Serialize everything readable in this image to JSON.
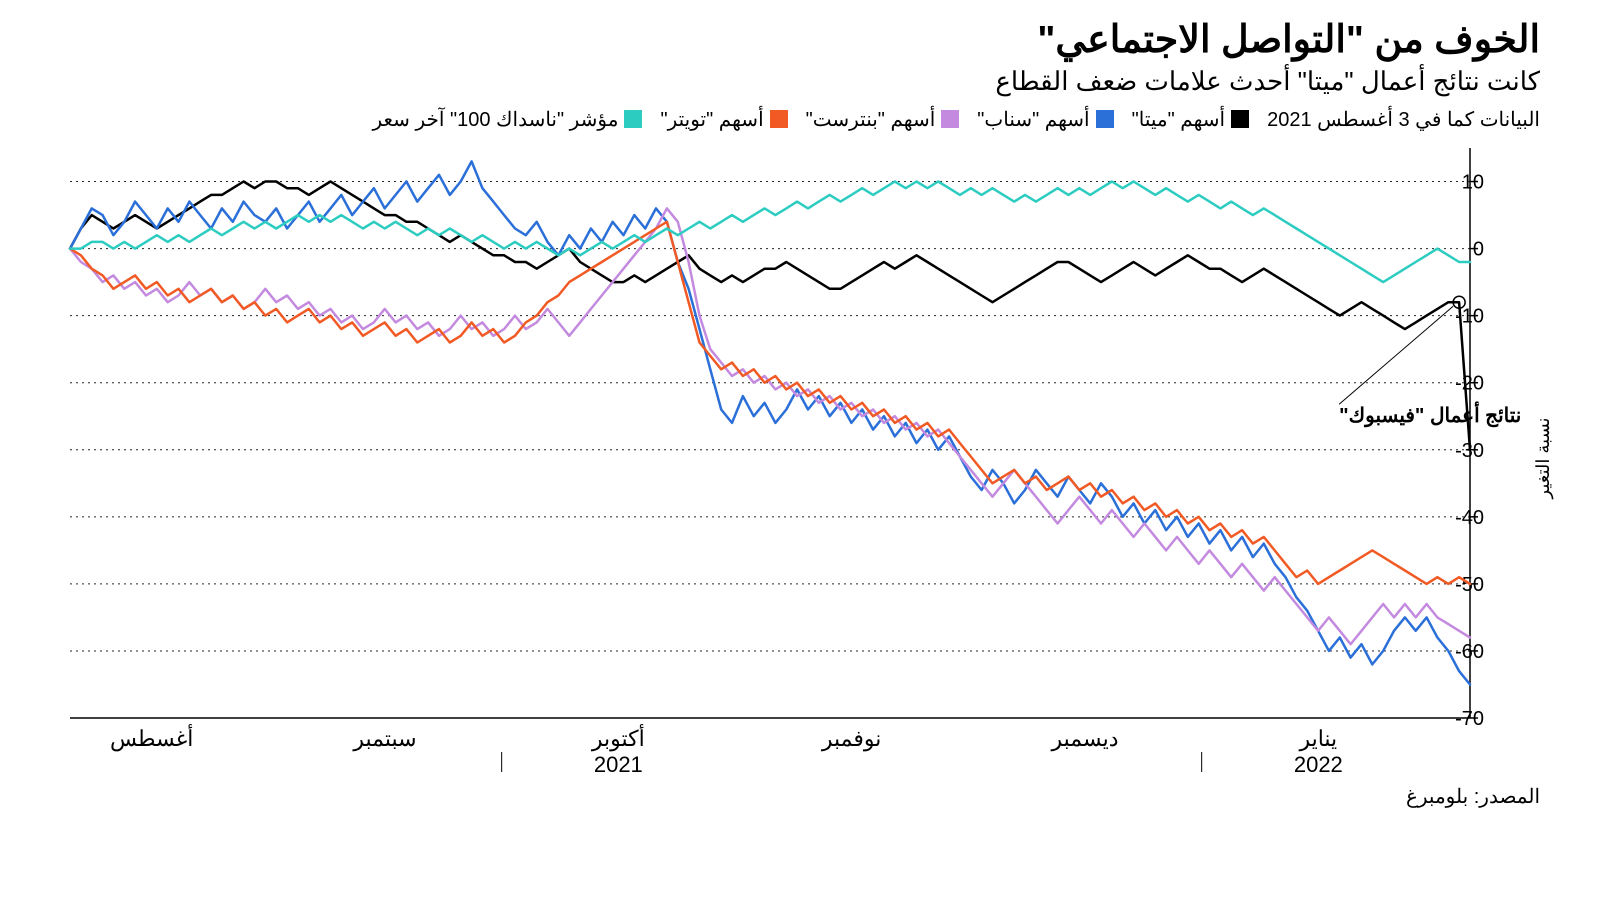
{
  "title": "الخوف من \"التواصل الاجتماعي\"",
  "subtitle": "كانت نتائج أعمال \"ميتا\" أحدث علامات ضعف القطاع",
  "legend_note": "البيانات كما في 3 أغسطس 2021",
  "y_axis_title": "نسبة التغير",
  "source": "المصدر: بلومبرغ",
  "annotation": {
    "text": "نتائج أعمال \"فيسبوك\""
  },
  "chart": {
    "type": "line",
    "background_color": "#ffffff",
    "grid_color": "#000000",
    "grid_dash": "2 4",
    "line_width": 2.5,
    "ylim": [
      -70,
      15
    ],
    "ytick_values": [
      10,
      0,
      -10,
      -20,
      -30,
      -40,
      -50,
      -60,
      -70
    ],
    "ytick_labels": [
      "10",
      "0",
      "10-",
      "20-",
      "30-",
      "40-",
      "50-",
      "60-",
      "70-"
    ],
    "x_months": [
      "أغسطس",
      "سبتمبر",
      "أكتوبر",
      "نوفمبر",
      "ديسمبر",
      "يناير"
    ],
    "x_years": {
      "2021": 2,
      "2022": 5
    },
    "n_points": 130,
    "series": [
      {
        "name": "أسهم \"ميتا\"",
        "color": "#000000",
        "data": [
          0,
          3,
          5,
          4,
          3,
          4,
          5,
          4,
          3,
          4,
          5,
          6,
          7,
          8,
          8,
          9,
          10,
          9,
          10,
          10,
          9,
          9,
          8,
          9,
          10,
          9,
          8,
          7,
          6,
          5,
          5,
          4,
          4,
          3,
          2,
          1,
          2,
          1,
          0,
          -1,
          -1,
          -2,
          -2,
          -3,
          -2,
          -1,
          0,
          -2,
          -3,
          -4,
          -5,
          -5,
          -4,
          -5,
          -4,
          -3,
          -2,
          -1,
          -3,
          -4,
          -5,
          -4,
          -5,
          -4,
          -3,
          -3,
          -2,
          -3,
          -4,
          -5,
          -6,
          -6,
          -5,
          -4,
          -3,
          -2,
          -3,
          -2,
          -1,
          -2,
          -3,
          -4,
          -5,
          -6,
          -7,
          -8,
          -7,
          -6,
          -5,
          -4,
          -3,
          -2,
          -2,
          -3,
          -4,
          -5,
          -4,
          -3,
          -2,
          -3,
          -4,
          -3,
          -2,
          -1,
          -2,
          -3,
          -3,
          -4,
          -5,
          -4,
          -3,
          -4,
          -5,
          -6,
          -7,
          -8,
          -9,
          -10,
          -9,
          -8,
          -9,
          -10,
          -11,
          -12,
          -11,
          -10,
          -9,
          -8,
          -8,
          -30
        ]
      },
      {
        "name": "أسهم \"سناب\"",
        "color": "#2b6fd8",
        "data": [
          0,
          3,
          6,
          5,
          2,
          4,
          7,
          5,
          3,
          6,
          4,
          7,
          5,
          3,
          6,
          4,
          7,
          5,
          4,
          6,
          3,
          5,
          7,
          4,
          6,
          8,
          5,
          7,
          9,
          6,
          8,
          10,
          7,
          9,
          11,
          8,
          10,
          13,
          9,
          7,
          5,
          3,
          2,
          4,
          1,
          -1,
          2,
          0,
          3,
          1,
          4,
          2,
          5,
          3,
          6,
          4,
          -2,
          -6,
          -12,
          -18,
          -24,
          -26,
          -22,
          -25,
          -23,
          -26,
          -24,
          -21,
          -24,
          -22,
          -25,
          -23,
          -26,
          -24,
          -27,
          -25,
          -28,
          -26,
          -29,
          -27,
          -30,
          -28,
          -31,
          -34,
          -36,
          -33,
          -35,
          -38,
          -36,
          -33,
          -35,
          -37,
          -34,
          -36,
          -38,
          -35,
          -37,
          -40,
          -38,
          -41,
          -39,
          -42,
          -40,
          -43,
          -41,
          -44,
          -42,
          -45,
          -43,
          -46,
          -44,
          -47,
          -49,
          -52,
          -54,
          -57,
          -60,
          -58,
          -61,
          -59,
          -62,
          -60,
          -57,
          -55,
          -57,
          -55,
          -58,
          -60,
          -63,
          -65
        ]
      },
      {
        "name": "أسهم \"بنترست\"",
        "color": "#c38adf",
        "data": [
          0,
          -2,
          -3,
          -5,
          -4,
          -6,
          -5,
          -7,
          -6,
          -8,
          -7,
          -5,
          -7,
          -6,
          -8,
          -7,
          -9,
          -8,
          -6,
          -8,
          -7,
          -9,
          -8,
          -10,
          -9,
          -11,
          -10,
          -12,
          -11,
          -9,
          -11,
          -10,
          -12,
          -11,
          -13,
          -12,
          -10,
          -12,
          -11,
          -13,
          -12,
          -10,
          -12,
          -11,
          -9,
          -11,
          -13,
          -11,
          -9,
          -7,
          -5,
          -3,
          -1,
          1,
          3,
          6,
          4,
          -2,
          -10,
          -15,
          -17,
          -19,
          -18,
          -20,
          -19,
          -21,
          -20,
          -22,
          -21,
          -23,
          -22,
          -24,
          -23,
          -25,
          -24,
          -26,
          -25,
          -27,
          -26,
          -28,
          -27,
          -29,
          -31,
          -33,
          -35,
          -37,
          -35,
          -33,
          -35,
          -37,
          -39,
          -41,
          -39,
          -37,
          -39,
          -41,
          -39,
          -41,
          -43,
          -41,
          -43,
          -45,
          -43,
          -45,
          -47,
          -45,
          -47,
          -49,
          -47,
          -49,
          -51,
          -49,
          -51,
          -53,
          -55,
          -57,
          -55,
          -57,
          -59,
          -57,
          -55,
          -53,
          -55,
          -53,
          -55,
          -53,
          -55,
          -56,
          -57,
          -58
        ]
      },
      {
        "name": "أسهم \"تويتر\"",
        "color": "#f15a24",
        "data": [
          0,
          -1,
          -3,
          -4,
          -6,
          -5,
          -4,
          -6,
          -5,
          -7,
          -6,
          -8,
          -7,
          -6,
          -8,
          -7,
          -9,
          -8,
          -10,
          -9,
          -11,
          -10,
          -9,
          -11,
          -10,
          -12,
          -11,
          -13,
          -12,
          -11,
          -13,
          -12,
          -14,
          -13,
          -12,
          -14,
          -13,
          -11,
          -13,
          -12,
          -14,
          -13,
          -11,
          -10,
          -8,
          -7,
          -5,
          -4,
          -3,
          -2,
          -1,
          0,
          1,
          2,
          3,
          4,
          -2,
          -8,
          -14,
          -16,
          -18,
          -17,
          -19,
          -18,
          -20,
          -19,
          -21,
          -20,
          -22,
          -21,
          -23,
          -22,
          -24,
          -23,
          -25,
          -24,
          -26,
          -25,
          -27,
          -26,
          -28,
          -27,
          -29,
          -31,
          -33,
          -35,
          -34,
          -33,
          -35,
          -34,
          -36,
          -35,
          -34,
          -36,
          -35,
          -37,
          -36,
          -38,
          -37,
          -39,
          -38,
          -40,
          -39,
          -41,
          -40,
          -42,
          -41,
          -43,
          -42,
          -44,
          -43,
          -45,
          -47,
          -49,
          -48,
          -50,
          -49,
          -48,
          -47,
          -46,
          -45,
          -46,
          -47,
          -48,
          -49,
          -50,
          -49,
          -50,
          -49,
          -50
        ]
      },
      {
        "name": "مؤشر \"ناسداك 100\" آخر سعر",
        "color": "#2cccc0",
        "data": [
          0,
          0,
          1,
          1,
          0,
          1,
          0,
          1,
          2,
          1,
          2,
          1,
          2,
          3,
          2,
          3,
          4,
          3,
          4,
          3,
          4,
          5,
          4,
          5,
          4,
          5,
          4,
          3,
          4,
          3,
          4,
          3,
          2,
          3,
          2,
          3,
          2,
          1,
          2,
          1,
          0,
          1,
          0,
          1,
          0,
          -1,
          0,
          -1,
          0,
          1,
          0,
          1,
          2,
          1,
          2,
          3,
          2,
          3,
          4,
          3,
          4,
          5,
          4,
          5,
          6,
          5,
          6,
          7,
          6,
          7,
          8,
          7,
          8,
          9,
          8,
          9,
          10,
          9,
          10,
          9,
          10,
          9,
          8,
          9,
          8,
          9,
          8,
          7,
          8,
          7,
          8,
          9,
          8,
          9,
          8,
          9,
          10,
          9,
          10,
          9,
          8,
          9,
          8,
          7,
          8,
          7,
          6,
          7,
          6,
          5,
          6,
          5,
          4,
          3,
          2,
          1,
          0,
          -1,
          -2,
          -3,
          -4,
          -5,
          -4,
          -3,
          -2,
          -1,
          0,
          -1,
          -2,
          -2
        ]
      }
    ]
  }
}
